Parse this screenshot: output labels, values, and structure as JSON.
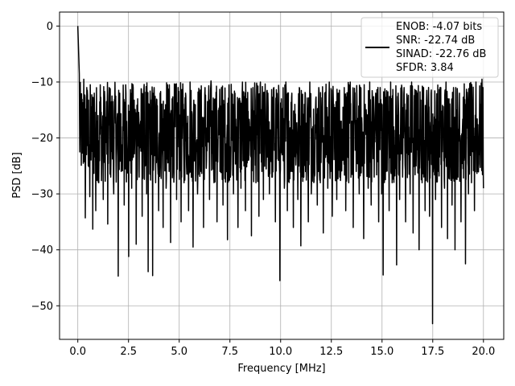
{
  "chart_data": {
    "type": "line",
    "title": "",
    "xlabel": "Frequency [MHz]",
    "ylabel": "PSD [dB]",
    "xlim": [
      -0.9,
      21.0
    ],
    "ylim": [
      -56,
      2.5
    ],
    "xticks": [
      0.0,
      2.5,
      5.0,
      7.5,
      10.0,
      12.5,
      15.0,
      17.5,
      20.0
    ],
    "xtick_labels": [
      "0.0",
      "2.5",
      "5.0",
      "7.5",
      "10.0",
      "12.5",
      "15.0",
      "17.5",
      "20.0"
    ],
    "yticks": [
      0,
      -10,
      -20,
      -30,
      -40,
      -50
    ],
    "ytick_labels": [
      "0",
      "−10",
      "−20",
      "−30",
      "−40",
      "−50"
    ],
    "grid": true,
    "legend_position": "top-right",
    "legend": [
      "ENOB: -4.07 bits",
      "SNR: -22.74 dB",
      "SINAD: -22.76 dB",
      "SFDR: 3.84"
    ],
    "series": [
      {
        "color": "#000000",
        "x_start": 0.0,
        "x_end": 20.0,
        "noise_floor_typical_range": [
          -30,
          -10
        ],
        "values": [
          0.0,
          -8.5,
          -16,
          -22.7,
          -9.5,
          -34.3,
          -11,
          -25,
          -30.5,
          -15,
          -36.3,
          -12,
          -33,
          -17,
          -28,
          -10.5,
          -24,
          -31,
          -13,
          -20,
          -35.4,
          -11,
          -27,
          -16,
          -30,
          -14,
          -22,
          -44.7,
          -12,
          -26,
          -18,
          -32,
          -10.5,
          -23,
          -41.2,
          -15,
          -29,
          -11,
          -21,
          -39,
          -13,
          -27,
          -17,
          -34,
          -12,
          -25,
          -30,
          -43.9,
          -14,
          -23,
          -44.6,
          -11,
          -28,
          -19,
          -33,
          -12,
          -22,
          -36,
          -15,
          -29,
          -10.5,
          -26,
          -38.7,
          -13,
          -24,
          -18,
          -31,
          -11,
          -20,
          -35,
          -16,
          -28,
          -12,
          -23,
          -33,
          -10,
          -25,
          -39.5,
          -14,
          -21,
          -30,
          -12,
          -26,
          -17,
          -36,
          -11,
          -24,
          -15,
          -31,
          -9.8,
          -22,
          -28,
          -13,
          -35,
          -18,
          -26,
          -11,
          -32,
          -14,
          -23,
          -38.2,
          -10.5,
          -27,
          -16,
          -30,
          -12,
          -21,
          -36,
          -15,
          -29,
          -10,
          -25,
          -33,
          -13,
          -24,
          -18,
          -37.5,
          -11,
          -22,
          -28,
          -14,
          -34,
          -10,
          -26,
          -31,
          -16,
          -23,
          -12,
          -30,
          -19,
          -27,
          -11,
          -35,
          -15,
          -24,
          -45.5,
          -13,
          -21,
          -29,
          -10,
          -33,
          -17,
          -26,
          -12,
          -36,
          -14,
          -22,
          -31,
          -11,
          -39.3,
          -16,
          -27,
          -12,
          -24,
          -35,
          -10,
          -30,
          -18,
          -25,
          -13,
          -32,
          -11,
          -28,
          -15,
          -37,
          -12,
          -23,
          -29,
          -10,
          -26,
          -34,
          -14,
          -21,
          -31,
          -12,
          -27,
          -17,
          -24,
          -11,
          -33,
          -15,
          -28,
          -10,
          -22,
          -36,
          -13,
          -26,
          -18,
          -30,
          -11,
          -25,
          -38,
          -14,
          -23,
          -29,
          -10,
          -32,
          -16,
          -27,
          -12,
          -24,
          -35,
          -11,
          -30,
          -44.5,
          -15,
          -26,
          -13,
          -33,
          -10,
          -28,
          -18,
          -24,
          -42.7,
          -12,
          -31,
          -16,
          -27,
          -11,
          -35,
          -14,
          -23,
          -30,
          -10,
          -37,
          -15,
          -25,
          -12,
          -40,
          -17,
          -28,
          -11,
          -33,
          -13,
          -24,
          -34,
          -12,
          -53.2,
          -20,
          -31,
          -14,
          -26,
          -11,
          -36,
          -16,
          -29,
          -10,
          -38,
          -13,
          -25,
          -32,
          -11,
          -40,
          -15,
          -27,
          -12,
          -35,
          -18,
          -24,
          -42.5,
          -13,
          -30,
          -11,
          -28,
          -16,
          -33,
          -10,
          -26,
          -23,
          -14,
          -9.5,
          -29
        ]
      }
    ]
  }
}
